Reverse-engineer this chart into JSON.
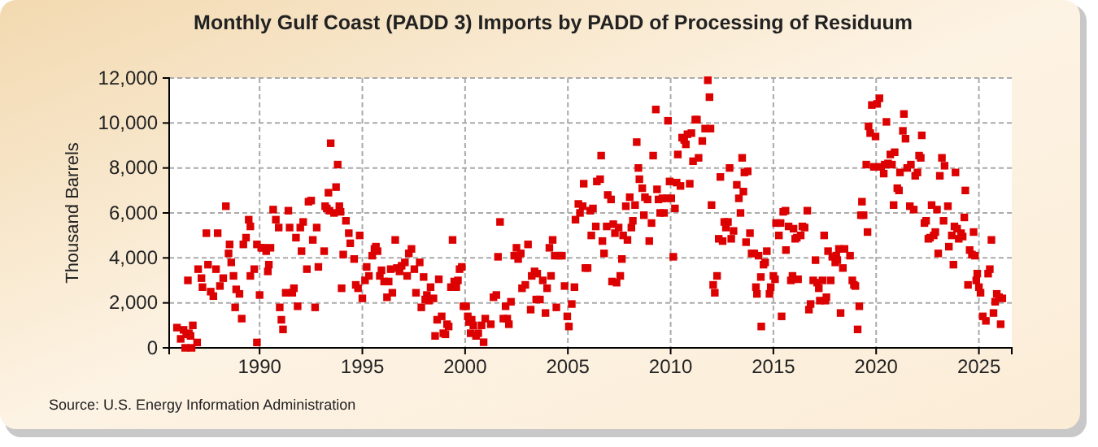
{
  "chart_data": {
    "type": "scatter",
    "title": "Monthly Gulf Coast (PADD 3) Imports by PADD of Processing of Residuum",
    "ylabel": "Thousand Barrels",
    "annotations": [
      "Source: U.S. Energy Information Administration"
    ],
    "marker": "square",
    "grid": true,
    "color": "#dd0000",
    "xlim": [
      1985.6,
      2026.6
    ],
    "xticks": [
      1990,
      1995,
      2000,
      2005,
      2010,
      2015,
      2020,
      2025
    ],
    "ylim": [
      0,
      12000
    ],
    "yticks": [
      0,
      {
        "value": 2000,
        "label": "2,000"
      },
      {
        "value": 4000,
        "label": "4,000"
      },
      {
        "value": 6000,
        "label": "6,000"
      },
      {
        "value": 8000,
        "label": "8,000"
      },
      {
        "value": 10000,
        "label": "10,000"
      },
      {
        "value": 12000,
        "label": "12,000"
      }
    ],
    "x": [
      1985.98,
      1986.16,
      1986.3,
      1986.43,
      1986.56,
      1986.38,
      1986.69,
      1986.64,
      1986.75,
      1986.96,
      1986.51,
      1987.01,
      1987.17,
      1987.22,
      1987.41,
      1987.49,
      1987.62,
      1987.75,
      1987.88,
      1987.96,
      1988.07,
      1988.23,
      1988.36,
      1988.49,
      1988.54,
      1988.62,
      1988.73,
      1988.81,
      1988.86,
      1989.02,
      1989.13,
      1989.21,
      1989.34,
      1989.47,
      1989.55,
      1989.55,
      1989.74,
      1989.87,
      1989.87,
      1990.0,
      1990.08,
      1990.19,
      1990.32,
      1990.45,
      1990.53,
      1990.4,
      1990.66,
      1990.79,
      1990.93,
      1990.98,
      1991.06,
      1991.14,
      1991.27,
      1991.4,
      1991.46,
      1991.59,
      1991.67,
      1991.77,
      1991.85,
      1991.98,
      1992.04,
      1992.12,
      1992.3,
      1992.38,
      1992.51,
      1992.59,
      1992.7,
      1992.78,
      1992.86,
      1993.14,
      1993.19,
      1993.27,
      1993.35,
      1993.4,
      1993.46,
      1993.62,
      1993.72,
      1993.8,
      1993.88,
      1993.94,
      1993.99,
      1994.07,
      1994.2,
      1994.34,
      1994.41,
      1994.6,
      1994.68,
      1994.79,
      1994.87,
      1995.0,
      1995.13,
      1995.21,
      1995.32,
      1995.48,
      1995.59,
      1995.66,
      1995.74,
      1995.85,
      1995.93,
      1996.06,
      1996.2,
      1996.28,
      1996.38,
      1996.46,
      1996.6,
      1996.68,
      1996.81,
      1996.91,
      1997.07,
      1997.18,
      1997.26,
      1997.39,
      1997.53,
      1997.61,
      1997.79,
      1997.87,
      1997.98,
      1998.06,
      1998.14,
      1998.24,
      1998.32,
      1998.46,
      1998.54,
      1998.64,
      1998.72,
      1998.86,
      1998.94,
      1999.04,
      1999.12,
      1999.2,
      1999.31,
      1999.39,
      1999.47,
      1999.57,
      1999.65,
      1999.73,
      1999.84,
      1999.92,
      2000.05,
      2000.13,
      2000.19,
      2000.27,
      2000.32,
      2000.4,
      2000.53,
      2000.64,
      2000.8,
      2000.9,
      2000.98,
      2001.25,
      2001.38,
      2001.52,
      2001.6,
      2001.7,
      2001.86,
      2001.97,
      2002.05,
      2002.13,
      2002.23,
      2002.39,
      2002.5,
      2002.58,
      2002.71,
      2002.77,
      2002.93,
      2003.06,
      2003.19,
      2003.24,
      2003.38,
      2003.46,
      2003.51,
      2003.64,
      2003.78,
      2003.91,
      2003.99,
      2004.1,
      2004.18,
      2004.26,
      2004.36,
      2004.44,
      2004.57,
      2004.71,
      2004.84,
      2004.97,
      2005.05,
      2005.19,
      2005.32,
      2005.37,
      2005.51,
      2005.59,
      2005.72,
      2005.77,
      2005.85,
      2005.96,
      2006.09,
      2006.14,
      2006.22,
      2006.36,
      2006.41,
      2006.57,
      2006.62,
      2006.68,
      2006.76,
      2006.89,
      2006.94,
      2007.1,
      2007.15,
      2007.21,
      2007.29,
      2007.37,
      2007.47,
      2007.55,
      2007.63,
      2007.69,
      2007.82,
      2007.9,
      2008.01,
      2008.09,
      2008.16,
      2008.27,
      2008.35,
      2008.43,
      2008.48,
      2008.62,
      2008.7,
      2008.75,
      2008.88,
      2008.96,
      2009.07,
      2009.15,
      2009.28,
      2009.34,
      2009.41,
      2009.49,
      2009.6,
      2009.68,
      2009.81,
      2009.87,
      2009.95,
      2010.03,
      2010.13,
      2010.21,
      2010.29,
      2010.35,
      2010.48,
      2010.56,
      2010.66,
      2010.74,
      2010.82,
      2010.93,
      2011.01,
      2011.09,
      2011.2,
      2011.28,
      2011.36,
      2011.54,
      2011.68,
      2011.81,
      2011.89,
      2011.94,
      2011.99,
      2012.07,
      2012.15,
      2012.26,
      2012.34,
      2012.42,
      2012.53,
      2012.61,
      2012.69,
      2012.79,
      2012.87,
      2012.95,
      2013.06,
      2013.22,
      2013.32,
      2013.4,
      2013.48,
      2013.54,
      2013.59,
      2013.67,
      2013.75,
      2013.86,
      2013.94,
      2014.07,
      2014.15,
      2014.2,
      2014.28,
      2014.39,
      2014.41,
      2014.52,
      2014.6,
      2014.68,
      2014.81,
      2014.87,
      2015.0,
      2015.08,
      2015.13,
      2015.27,
      2015.35,
      2015.4,
      2015.48,
      2015.59,
      2015.61,
      2015.74,
      2015.85,
      2015.93,
      2015.98,
      2016.06,
      2016.14,
      2016.2,
      2016.33,
      2016.41,
      2016.52,
      2016.65,
      2016.73,
      2016.81,
      2016.94,
      2017.05,
      2017.13,
      2017.21,
      2017.26,
      2017.39,
      2017.47,
      2017.53,
      2017.58,
      2017.66,
      2017.79,
      2017.87,
      2018.01,
      2018.06,
      2018.11,
      2018.19,
      2018.27,
      2018.38,
      2018.46,
      2018.73,
      2018.84,
      2018.92,
      2018.99,
      2019.1,
      2019.18,
      2019.26,
      2019.31,
      2019.39,
      2019.52,
      2019.58,
      2019.63,
      2019.71,
      2019.79,
      2019.89,
      2019.97,
      2020.05,
      2020.16,
      2020.24,
      2020.37,
      2020.42,
      2020.5,
      2020.58,
      2020.69,
      2020.77,
      2020.85,
      2020.9,
      2021.03,
      2021.11,
      2021.16,
      2021.3,
      2021.35,
      2021.43,
      2021.51,
      2021.64,
      2021.69,
      2021.83,
      2021.9,
      2022.01,
      2022.09,
      2022.17,
      2022.22,
      2022.35,
      2022.43,
      2022.54,
      2022.62,
      2022.7,
      2022.8,
      2022.88,
      2022.96,
      2023.02,
      2023.1,
      2023.2,
      2023.28,
      2023.33,
      2023.49,
      2023.54,
      2023.68,
      2023.76,
      2023.81,
      2023.86,
      2023.94,
      2024.02,
      2024.13,
      2024.21,
      2024.29,
      2024.34,
      2024.47,
      2024.55,
      2024.66,
      2024.74,
      2024.81,
      2024.87,
      2024.92,
      2025.0,
      2025.08,
      2025.19,
      2025.34,
      2025.45,
      2025.53,
      2025.61,
      2025.71,
      2025.79,
      2025.87,
      2025.98,
      2026.06,
      2026.14
    ],
    "values": [
      900,
      400,
      800,
      600,
      650,
      0,
      0,
      530,
      1000,
      240,
      3000,
      3500,
      3100,
      2700,
      5100,
      3700,
      2500,
      2300,
      3500,
      5100,
      2750,
      3100,
      6300,
      4200,
      4600,
      3800,
      3200,
      1800,
      2600,
      2400,
      1300,
      4600,
      4900,
      5700,
      5400,
      3200,
      3500,
      240,
      4600,
      2350,
      4450,
      4450,
      4300,
      3700,
      4450,
      3400,
      6150,
      5700,
      5350,
      1800,
      1250,
      820,
      2450,
      6100,
      5350,
      2450,
      2650,
      4900,
      1850,
      5350,
      4300,
      5600,
      3500,
      6500,
      6550,
      4800,
      1800,
      5350,
      3600,
      4300,
      6300,
      6200,
      6900,
      6100,
      9100,
      6000,
      7150,
      8150,
      6300,
      6050,
      2650,
      4150,
      5650,
      5100,
      4650,
      3950,
      2800,
      2650,
      5000,
      2200,
      3000,
      3600,
      3200,
      4100,
      4400,
      4500,
      4300,
      3200,
      3450,
      2950,
      2250,
      2950,
      3500,
      2450,
      4800,
      3550,
      3400,
      3650,
      3800,
      3200,
      4200,
      4400,
      3500,
      2450,
      3800,
      1800,
      3150,
      2150,
      2350,
      2100,
      2700,
      2200,
      530,
      1250,
      3050,
      1400,
      650,
      600,
      1050,
      950,
      2700,
      4800,
      2950,
      2700,
      3000,
      3500,
      3600,
      1850,
      1850,
      1400,
      1150,
      650,
      1250,
      1000,
      530,
      650,
      1000,
      250,
      1300,
      1050,
      2250,
      2350,
      4050,
      5600,
      1300,
      1850,
      1300,
      1050,
      2050,
      4100,
      4450,
      3950,
      4200,
      2650,
      2800,
      4600,
      1700,
      3200,
      3400,
      2150,
      3300,
      2150,
      3000,
      1550,
      2650,
      4450,
      3200,
      4800,
      4100,
      1800,
      4100,
      4100,
      2750,
      1400,
      950,
      1950,
      2700,
      5700,
      6400,
      6000,
      6300,
      7300,
      3550,
      3550,
      6100,
      5000,
      6200,
      5400,
      7400,
      7500,
      8550,
      4750,
      4200,
      5400,
      6800,
      6600,
      2950,
      5500,
      5100,
      2900,
      5350,
      3200,
      3950,
      5000,
      6300,
      4800,
      6700,
      5350,
      5650,
      6350,
      9150,
      8000,
      7500,
      7100,
      5900,
      6700,
      6600,
      4750,
      5550,
      8550,
      10600,
      7050,
      6600,
      6000,
      6650,
      6000,
      6650,
      10100,
      7400,
      6650,
      4050,
      6200,
      7350,
      8600,
      7200,
      9350,
      9250,
      9050,
      9500,
      7300,
      9550,
      8300,
      10150,
      10150,
      8450,
      9200,
      9750,
      11900,
      11150,
      9750,
      6350,
      2800,
      2450,
      3200,
      4850,
      7600,
      4750,
      5600,
      5350,
      5600,
      8000,
      4850,
      5200,
      7250,
      6650,
      6000,
      8450,
      6950,
      7800,
      4700,
      7850,
      5100,
      4200,
      4200,
      2700,
      2400,
      4100,
      3150,
      950,
      3700,
      3800,
      4300,
      2400,
      2700,
      3200,
      3050,
      5550,
      5000,
      5550,
      1400,
      6050,
      6100,
      4350,
      5400,
      3000,
      3200,
      5300,
      4850,
      4900,
      3050,
      5000,
      5400,
      5350,
      6100,
      1700,
      1950,
      3000,
      3900,
      2900,
      2650,
      2100,
      3000,
      5000,
      2100,
      2250,
      4300,
      3000,
      4050,
      3800,
      4100,
      3900,
      4400,
      1550,
      3550,
      4400,
      4100,
      3000,
      2800,
      2750,
      820,
      1850,
      5900,
      6500,
      5900,
      8150,
      5150,
      9850,
      9550,
      10800,
      8050,
      9400,
      10850,
      11100,
      8050,
      7750,
      8150,
      10050,
      8200,
      8600,
      8150,
      6350,
      8700,
      7100,
      7000,
      7800,
      9650,
      10400,
      9300,
      8000,
      6300,
      8150,
      6150,
      7650,
      7800,
      8550,
      8450,
      9450,
      5550,
      5650,
      4850,
      4900,
      6350,
      5000,
      5150,
      6150,
      4200,
      7650,
      8450,
      5650,
      8100,
      6300,
      4500,
      5000,
      3700,
      5400,
      7800,
      5300,
      4850,
      5100,
      4950,
      5800,
      7000,
      2800,
      4350,
      4150,
      5150,
      4100,
      3000,
      3300,
      2700,
      2450,
      1400,
      1200,
      3300,
      3500,
      4800,
      1550,
      2050,
      2400,
      2250,
      1050,
      2200
    ]
  }
}
